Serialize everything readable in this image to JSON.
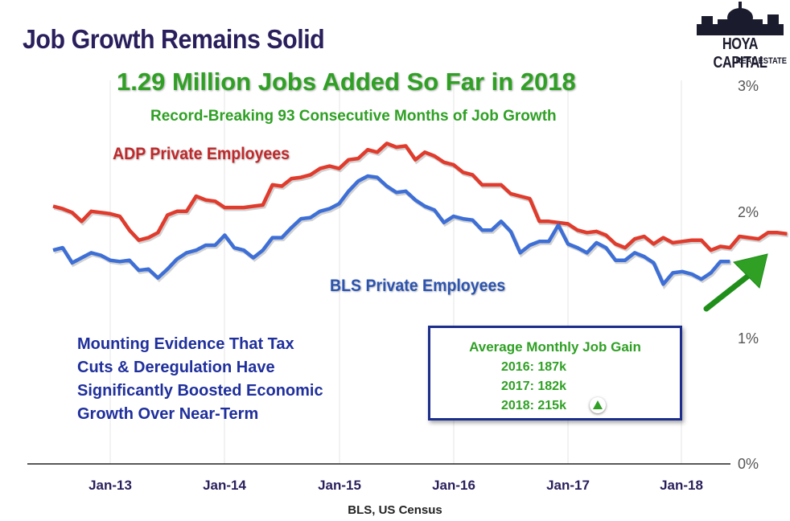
{
  "header": {
    "title": "Job Growth Remains Solid",
    "headline": "1.29 Million Jobs Added So Far in 2018",
    "subheadline": "Record-Breaking 93 Consecutive Months of Job Growth"
  },
  "logo": {
    "line1": "HOYA CAPITAL",
    "line2": "REAL ESTATE"
  },
  "annotations": {
    "note_lines": [
      "Mounting Evidence That Tax",
      "Cuts & Deregulation Have",
      "Significantly Boosted  Economic",
      "Growth Over Near-Term"
    ],
    "gain_box": {
      "title": "Average Monthly Job Gain",
      "rows": [
        "2016: 187k",
        "2017: 182k",
        "2018: 215k"
      ]
    }
  },
  "source": "BLS, US Census",
  "colors": {
    "adp": "#e03b2c",
    "bls": "#3e6fd6",
    "accent_green": "#2fa024",
    "navy": "#1d2d8c"
  },
  "chart_data": {
    "type": "line",
    "x_tick_labels": [
      "Jan-13",
      "Jan-14",
      "Jan-15",
      "Jan-16",
      "Jan-17",
      "Jan-18"
    ],
    "y_tick_labels": [
      "3%",
      "2%",
      "1%",
      "0%"
    ],
    "ylim": [
      0,
      3
    ],
    "grid": false,
    "x_start": "2012-03",
    "series": [
      {
        "name": "ADP Private Employees",
        "values": [
          2.05,
          2.03,
          2.0,
          1.93,
          2.01,
          2.0,
          1.99,
          1.97,
          1.86,
          1.78,
          1.8,
          1.84,
          1.98,
          2.01,
          2.01,
          2.13,
          2.1,
          2.09,
          2.04,
          2.04,
          2.04,
          2.05,
          2.06,
          2.22,
          2.21,
          2.27,
          2.28,
          2.3,
          2.35,
          2.37,
          2.35,
          2.42,
          2.43,
          2.5,
          2.48,
          2.55,
          2.52,
          2.53,
          2.42,
          2.48,
          2.45,
          2.4,
          2.38,
          2.32,
          2.3,
          2.22,
          2.22,
          2.22,
          2.15,
          2.13,
          2.11,
          1.93,
          1.93,
          1.92,
          1.91,
          1.86,
          1.84,
          1.85,
          1.82,
          1.75,
          1.72,
          1.79,
          1.81,
          1.75,
          1.8,
          1.76,
          1.77,
          1.78,
          1.78,
          1.7,
          1.73,
          1.72,
          1.81,
          1.8,
          1.79,
          1.84,
          1.84,
          1.83
        ]
      },
      {
        "name": "BLS Private Employees",
        "values": [
          1.7,
          1.72,
          1.6,
          1.64,
          1.68,
          1.66,
          1.62,
          1.61,
          1.62,
          1.54,
          1.55,
          1.48,
          1.55,
          1.63,
          1.68,
          1.7,
          1.74,
          1.74,
          1.82,
          1.72,
          1.7,
          1.64,
          1.7,
          1.8,
          1.8,
          1.88,
          1.95,
          1.96,
          2.01,
          2.03,
          2.07,
          2.17,
          2.25,
          2.29,
          2.28,
          2.21,
          2.16,
          2.17,
          2.1,
          2.05,
          2.02,
          1.92,
          1.97,
          1.95,
          1.94,
          1.86,
          1.86,
          1.93,
          1.85,
          1.68,
          1.74,
          1.77,
          1.77,
          1.9,
          1.75,
          1.72,
          1.68,
          1.76,
          1.72,
          1.62,
          1.62,
          1.68,
          1.65,
          1.6,
          1.43,
          1.52,
          1.53,
          1.51,
          1.47,
          1.52,
          1.61,
          1.61
        ]
      }
    ]
  }
}
